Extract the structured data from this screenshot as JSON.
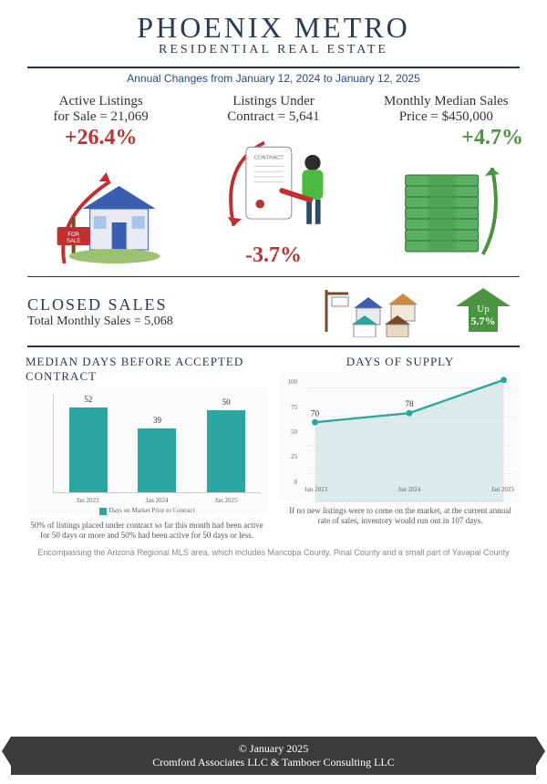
{
  "header": {
    "title": "PHOENIX METRO",
    "subtitle": "RESIDENTIAL REAL ESTATE",
    "daterange": "Annual Changes from January 12, 2024 to January 12, 2025"
  },
  "stats": {
    "active": {
      "label1": "Active Listings",
      "label2": "for Sale = 21,069",
      "pct": "+26.4%",
      "pct_color": "#c13030"
    },
    "under": {
      "label1": "Listings Under",
      "label2": "Contract = 5,641",
      "pct": "-3.7%",
      "pct_color": "#c13030"
    },
    "price": {
      "label1": "Monthly Median  Sales",
      "label2": "Price = $450,000",
      "pct": "+4.7%",
      "pct_color": "#4a9340"
    }
  },
  "closed": {
    "title": "CLOSED SALES",
    "value": "Total Monthly Sales = 5,068",
    "up_label": "Up",
    "up_pct": "5.7%",
    "arrow_color": "#4a9340"
  },
  "median_days": {
    "title": "MEDIAN DAYS BEFORE ACCEPTED CONTRACT",
    "type": "bar",
    "categories": [
      "Jan 2023",
      "Jan 2024",
      "Jan 2025"
    ],
    "values": [
      52,
      39,
      50
    ],
    "ylim": [
      0,
      60
    ],
    "bar_color": "#2aa5a0",
    "legend": "Days on Market Prior to Contract",
    "caption": "50% of listings placed under contract so far this month had been active for 50 days or more and 50% had been active for 50 days or less."
  },
  "supply": {
    "title": "DAYS OF SUPPLY",
    "type": "line-area",
    "categories": [
      "Jan 2023",
      "Jan 2024",
      "Jan 2025"
    ],
    "values": [
      70,
      78,
      107
    ],
    "ylim": [
      0,
      110
    ],
    "yticks": [
      0,
      25,
      50,
      75,
      100
    ],
    "line_color": "#2aa5a0",
    "fill_color": "#cfe3e2",
    "caption": "If no new listings were to come on the market, at the current annual rate of sales, inventory would run out in 107 days."
  },
  "footnote": "Encompassing the Arizona Regional MLS area, which includes Maricopa County, Pinal County and a small part of Yavapai County",
  "footer": {
    "line1": "© January 2025",
    "line2": "Cromford Associates LLC & Tamboer Consulting LLC"
  },
  "colors": {
    "navy": "#1f3556",
    "teal": "#2aa5a0",
    "red": "#c13030",
    "green": "#4a9340",
    "cash_green": "#5caf60",
    "grey": "#888888"
  }
}
